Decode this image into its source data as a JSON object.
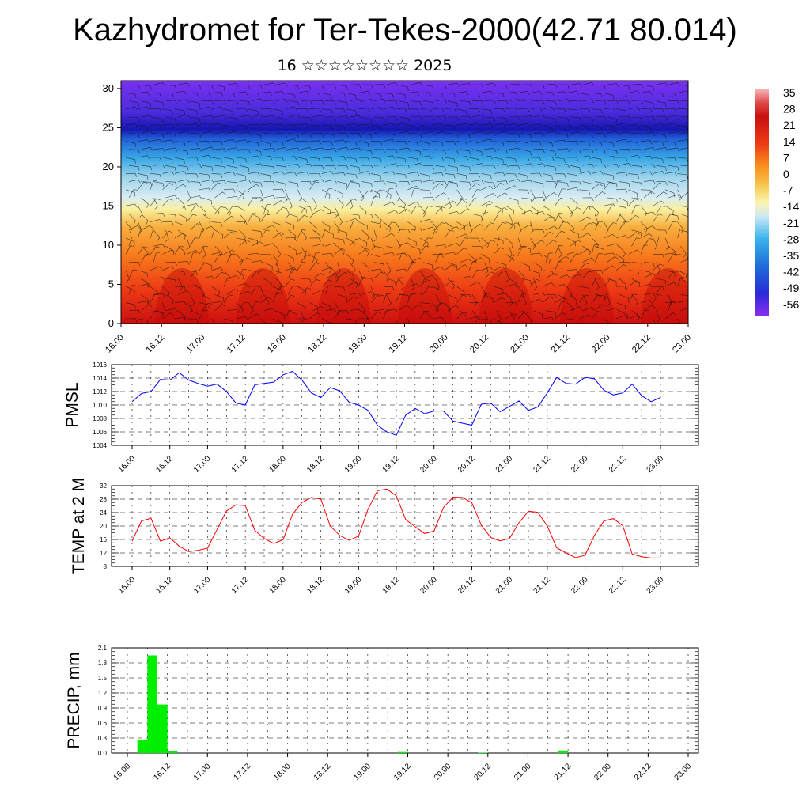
{
  "title": "Kazhydromet for Ter-Tekes-2000(42.71 80.014)",
  "subtitle": "16 ☆☆☆☆☆☆☆☆ 2025",
  "time_ticks": [
    "16.00",
    "16.12",
    "17.00",
    "17.12",
    "18.00",
    "18.12",
    "19.00",
    "19.12",
    "20.00",
    "20.12",
    "21.00",
    "21.12",
    "22.00",
    "22.12",
    "23.00"
  ],
  "colorbar_labels": [
    "35",
    "28",
    "21",
    "14",
    "7",
    "0",
    "-7",
    "-14",
    "-21",
    "-28",
    "-35",
    "-42",
    "-49",
    "-56"
  ],
  "chart_data": [
    {
      "type": "heatmap",
      "title": "",
      "xlabel": "",
      "ylabel": "",
      "ylim": [
        0,
        31
      ],
      "y_ticks": [
        "0",
        "5",
        "10",
        "15",
        "20",
        "25",
        "30"
      ],
      "x_ticks": [
        "16.00",
        "16.12",
        "17.00",
        "17.12",
        "18.00",
        "18.12",
        "19.00",
        "19.12",
        "20.00",
        "20.12",
        "21.00",
        "21.12",
        "22.00",
        "22.12",
        "23.00"
      ],
      "colorbar": [
        "35",
        "28",
        "21",
        "14",
        "7",
        "0",
        "-7",
        "-14",
        "-21",
        "-28",
        "-35",
        "-42",
        "-49",
        "-56"
      ],
      "zlim": [
        -60,
        38
      ],
      "description_levels": "temperature profile with wind barbs"
    },
    {
      "type": "line",
      "ylabel": "PMSL",
      "ylim": [
        1004,
        1016
      ],
      "y_ticks": [
        "1004",
        "1006",
        "1008",
        "1010",
        "1012",
        "1014",
        "1016"
      ],
      "x_ticks": [
        "16.00",
        "16.12",
        "17.00",
        "17.12",
        "18.00",
        "18.12",
        "19.00",
        "19.12",
        "20.00",
        "20.12",
        "21.00",
        "21.12",
        "22.00",
        "22.12",
        "23.00"
      ],
      "color": "#0000ff",
      "x": [
        0,
        3,
        6,
        9,
        12,
        15,
        18,
        21,
        24,
        27,
        30,
        33,
        36,
        39,
        42,
        45,
        48,
        51,
        54,
        57,
        60,
        63,
        66,
        69,
        72,
        75,
        78,
        81,
        84,
        87,
        90,
        93,
        96,
        99,
        102,
        105,
        108,
        111,
        114,
        117,
        120,
        123,
        126,
        129,
        132,
        135,
        138,
        141,
        144,
        147,
        150,
        153,
        156,
        159,
        162,
        165,
        168
      ],
      "values": [
        1010.5,
        1011.7,
        1012,
        1013.8,
        1013.7,
        1014.8,
        1013.7,
        1013.2,
        1012.8,
        1013.1,
        1012,
        1010.3,
        1010,
        1013,
        1013.2,
        1013.4,
        1014.5,
        1015,
        1013.7,
        1011.8,
        1011.1,
        1012.6,
        1012.1,
        1010.4,
        1010,
        1009.2,
        1007,
        1006,
        1005.5,
        1008.5,
        1009.5,
        1008.7,
        1009.1,
        1009.1,
        1007.6,
        1007.3,
        1007,
        1010.1,
        1010.3,
        1009,
        1009.8,
        1010.6,
        1009.2,
        1009.7,
        1011.8,
        1014.1,
        1013.2,
        1013.1,
        1014.1,
        1013.9,
        1012.2,
        1011.5,
        1011.8,
        1013.1,
        1011.4,
        1010.5,
        1011.1
      ]
    },
    {
      "type": "line",
      "ylabel": "TEMP at 2 M",
      "ylim": [
        8,
        32
      ],
      "y_ticks": [
        "8",
        "12",
        "16",
        "20",
        "24",
        "28",
        "32"
      ],
      "x_ticks": [
        "16.00",
        "16.12",
        "17.00",
        "17.12",
        "18.00",
        "18.12",
        "19.00",
        "19.12",
        "20.00",
        "20.12",
        "21.00",
        "21.12",
        "22.00",
        "22.12",
        "23.00"
      ],
      "color": "#ff0000",
      "x": [
        0,
        3,
        6,
        9,
        12,
        15,
        18,
        21,
        24,
        27,
        30,
        33,
        36,
        39,
        42,
        45,
        48,
        51,
        54,
        57,
        60,
        63,
        66,
        69,
        72,
        75,
        78,
        81,
        84,
        87,
        90,
        93,
        96,
        99,
        102,
        105,
        108,
        111,
        114,
        117,
        120,
        123,
        126,
        129,
        132,
        135,
        138,
        141,
        144,
        147,
        150,
        153,
        156,
        159,
        162,
        165,
        168
      ],
      "values": [
        15.5,
        21.5,
        22.3,
        15.5,
        16.5,
        14,
        12.4,
        12.8,
        13.4,
        19,
        24.5,
        26.3,
        26.1,
        18.7,
        16.3,
        14.8,
        15.9,
        23.5,
        27,
        28.5,
        28,
        20,
        17.2,
        15.8,
        17,
        25,
        30.5,
        31,
        29,
        21.9,
        19.8,
        17.8,
        18.5,
        25.5,
        28.6,
        28.5,
        27,
        20.3,
        16.6,
        15.6,
        16.3,
        21,
        24.4,
        24.1,
        20,
        13.5,
        12,
        10.6,
        11.3,
        17.2,
        21.5,
        22.2,
        20.1,
        11.7,
        10.9,
        10.5,
        10.5
      ]
    },
    {
      "type": "bar",
      "ylabel": "PRECIP, mm",
      "ylim": [
        0,
        2.1
      ],
      "y_ticks": [
        "0.0",
        "0.3",
        "0.6",
        "0.9",
        "1.2",
        "1.5",
        "1.8",
        "2.1"
      ],
      "x_ticks": [
        "16.00",
        "16.12",
        "17.00",
        "17.12",
        "18.00",
        "18.12",
        "19.00",
        "19.12",
        "20.00",
        "20.12",
        "21.00",
        "21.12",
        "22.00",
        "22.12",
        "23.00"
      ],
      "color": "#00ee00",
      "x": [
        3,
        6,
        9,
        12,
        15,
        18,
        21,
        24,
        27,
        30,
        33,
        36,
        39,
        42,
        45,
        48,
        51,
        54,
        57,
        60,
        63,
        66,
        69,
        72,
        75,
        78,
        81,
        84,
        87,
        90,
        93,
        96,
        99,
        102,
        105,
        108,
        111,
        114,
        117,
        120,
        123,
        126,
        129,
        132,
        135,
        138,
        141,
        144,
        147,
        150,
        153,
        156,
        159,
        162,
        165,
        168
      ],
      "values": [
        0,
        0.27,
        1.95,
        0.97,
        0.04,
        0,
        0,
        0,
        0,
        0,
        0,
        0,
        0,
        0,
        0,
        0,
        0,
        0,
        0,
        0,
        0,
        0,
        0,
        0,
        0,
        0,
        0,
        0.02,
        0,
        0,
        0,
        0,
        0,
        0,
        0,
        0.01,
        0,
        0,
        0,
        0,
        0,
        0,
        0,
        0.05,
        0,
        0,
        0,
        0,
        0,
        0,
        0,
        0,
        0,
        0,
        0,
        0
      ]
    }
  ]
}
